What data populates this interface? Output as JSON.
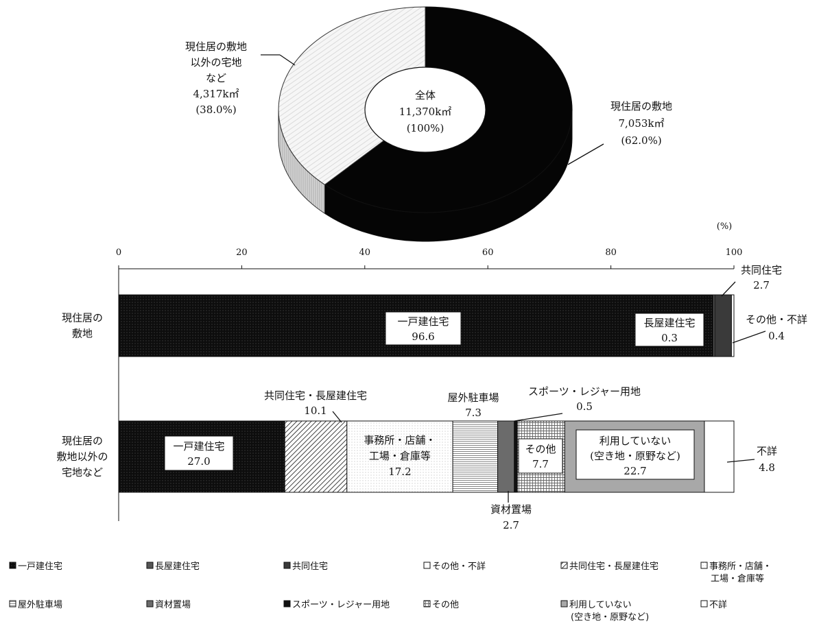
{
  "chart_data": [
    {
      "type": "pie",
      "center_label": [
        "全体",
        "11,370k㎡",
        "(100%)"
      ],
      "slices": [
        {
          "name": "現住居の敷地",
          "area": "7,053k㎡",
          "share": 62.0,
          "share_label": "(62.0%)",
          "fill": "#0d0d0d",
          "label_lines": [
            "現住居の敷地",
            "7,053k㎡",
            "(62.0%)"
          ]
        },
        {
          "name": "現住居の敷地以外の宅地など",
          "area": "4,317k㎡",
          "share": 38.0,
          "share_label": "(38.0%)",
          "fill": "#f4f4f4",
          "label_lines": [
            "現住居の敷地",
            "以外の宅地",
            "など",
            "4,317k㎡",
            "(38.0%)"
          ]
        }
      ]
    },
    {
      "type": "bar",
      "orientation": "horizontal",
      "stacked": true,
      "unit_label": "(%)",
      "xlim": [
        0,
        100
      ],
      "ticks": [
        0,
        20,
        40,
        60,
        80,
        100
      ],
      "categories": [
        {
          "name": "現住居の敷地",
          "label_lines": [
            "現住居の",
            "敷地"
          ]
        },
        {
          "name": "現住居の敷地以外の宅地など",
          "label_lines": [
            "現住居の",
            "敷地以外の",
            "宅地など"
          ]
        }
      ],
      "bars": [
        {
          "segments": [
            {
              "key": "ikko",
              "value": 96.6,
              "label_lines": [
                "一戸建住宅",
                "96.6"
              ],
              "label_mode": "inside-box"
            },
            {
              "key": "nagaya",
              "value": 0.3,
              "label_lines": [
                "長屋建住宅",
                "0.3"
              ],
              "label_mode": "side-box"
            },
            {
              "key": "kyodo",
              "value": 2.7,
              "label_lines": [
                "共同住宅",
                "2.7"
              ],
              "label_mode": "callout-top"
            },
            {
              "key": "sonota_fusho",
              "value": 0.4,
              "label_lines": [
                "その他・不詳",
                "0.4"
              ],
              "label_mode": "callout-right"
            }
          ]
        },
        {
          "segments": [
            {
              "key": "ikko",
              "value": 27.0,
              "label_lines": [
                "一戸建住宅",
                "27.0"
              ],
              "label_mode": "inside-box"
            },
            {
              "key": "kyodo_nagaya",
              "value": 10.1,
              "label_lines": [
                "共同住宅・長屋建住宅",
                "10.1"
              ],
              "label_mode": "callout-top"
            },
            {
              "key": "jimusho",
              "value": 17.2,
              "label_lines": [
                "事務所・店舗・",
                "工場・倉庫等",
                "17.2"
              ],
              "label_mode": "inside"
            },
            {
              "key": "chushajo",
              "value": 7.3,
              "label_lines": [
                "屋外駐車場",
                "7.3"
              ],
              "label_mode": "callout-top"
            },
            {
              "key": "shizai",
              "value": 2.7,
              "label_lines": [
                "資材置場",
                "2.7"
              ],
              "label_mode": "callout-bottom"
            },
            {
              "key": "sports",
              "value": 0.5,
              "label_lines": [
                "スポーツ・レジャー用地",
                "0.5"
              ],
              "label_mode": "callout-top-right"
            },
            {
              "key": "sonota",
              "value": 7.7,
              "label_lines": [
                "その他",
                "7.7"
              ],
              "label_mode": "inside-box"
            },
            {
              "key": "riyo_nashi",
              "value": 22.7,
              "label_lines": [
                "利用していない",
                "(空き地・原野など)",
                "22.7"
              ],
              "label_mode": "inside-box"
            },
            {
              "key": "fusho",
              "value": 4.8,
              "label_lines": [
                "不詳",
                "4.8"
              ],
              "label_mode": "callout-right"
            }
          ]
        }
      ],
      "legend": [
        {
          "key": "ikko",
          "lines": [
            "一戸建住宅"
          ]
        },
        {
          "key": "nagaya",
          "lines": [
            "長屋建住宅"
          ]
        },
        {
          "key": "kyodo",
          "lines": [
            "共同住宅"
          ]
        },
        {
          "key": "sonota_fusho",
          "lines": [
            "その他・不詳"
          ]
        },
        {
          "key": "kyodo_nagaya",
          "lines": [
            "共同住宅・長屋建住宅"
          ]
        },
        {
          "key": "jimusho",
          "lines": [
            "事務所・店舗・",
            "工場・倉庫等"
          ]
        },
        {
          "key": "chushajo",
          "lines": [
            "屋外駐車場"
          ]
        },
        {
          "key": "shizai",
          "lines": [
            "資材置場"
          ]
        },
        {
          "key": "sports",
          "lines": [
            "スポーツ・レジャー用地"
          ]
        },
        {
          "key": "sonota",
          "lines": [
            "その他"
          ]
        },
        {
          "key": "riyo_nashi",
          "lines": [
            "利用していない",
            "(空き地・原野など)"
          ]
        },
        {
          "key": "fusho",
          "lines": [
            "不詳"
          ]
        }
      ],
      "legend_placement": "bottom",
      "colors": {
        "ikko": "#0d0d0d",
        "nagaya": "#555555",
        "kyodo": "#3a3a3a",
        "sonota_fusho": "#ffffff",
        "kyodo_nagaya": "#ffffff",
        "jimusho": "#ffffff",
        "chushajo": "#ffffff",
        "shizai": "#6b6b6b",
        "sports": "#111111",
        "sonota": "#ffffff",
        "riyo_nashi": "#a8a8a8",
        "fusho": "#ffffff"
      }
    }
  ]
}
